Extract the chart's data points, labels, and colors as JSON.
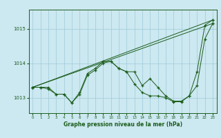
{
  "title": "Graphe pression niveau de la mer (hPa)",
  "bg_color": "#cce8f0",
  "grid_color": "#9ecad8",
  "line_color": "#1a5c1a",
  "xlim": [
    -0.5,
    23.5
  ],
  "ylim": [
    1012.55,
    1015.55
  ],
  "yticks": [
    1013,
    1014,
    1015
  ],
  "xticks": [
    0,
    1,
    2,
    3,
    4,
    5,
    6,
    7,
    8,
    9,
    10,
    11,
    12,
    13,
    14,
    15,
    16,
    17,
    18,
    19,
    20,
    21,
    22,
    23
  ],
  "series_detailed_1": {
    "x": [
      0,
      1,
      2,
      3,
      4,
      5,
      6,
      7,
      8,
      9,
      10,
      11,
      12,
      13,
      14,
      15,
      16,
      17,
      18,
      19,
      20,
      21,
      22,
      23
    ],
    "y": [
      1013.3,
      1013.3,
      1013.3,
      1013.1,
      1013.1,
      1012.85,
      1013.15,
      1013.7,
      1013.85,
      1014.05,
      1014.05,
      1013.85,
      1013.75,
      1013.75,
      1013.35,
      1013.55,
      1013.3,
      1013.05,
      1012.9,
      1012.9,
      1013.05,
      1013.75,
      1015.1,
      1015.25
    ]
  },
  "series_detailed_2": {
    "x": [
      0,
      1,
      2,
      3,
      4,
      5,
      6,
      7,
      8,
      9,
      10,
      11,
      12,
      13,
      14,
      15,
      16,
      17,
      18,
      19,
      20,
      21,
      22,
      23
    ],
    "y": [
      1013.3,
      1013.3,
      1013.25,
      1013.1,
      1013.1,
      1012.85,
      1013.1,
      1013.65,
      1013.8,
      1014.0,
      1014.05,
      1013.85,
      1013.75,
      1013.4,
      1013.15,
      1013.05,
      1013.05,
      1013.0,
      1012.88,
      1012.88,
      1013.05,
      1013.35,
      1014.7,
      1015.15
    ]
  },
  "series_sparse_1": {
    "x": [
      0,
      23
    ],
    "y": [
      1013.3,
      1015.25
    ]
  },
  "series_sparse_2": {
    "x": [
      0,
      23
    ],
    "y": [
      1013.3,
      1015.15
    ]
  }
}
